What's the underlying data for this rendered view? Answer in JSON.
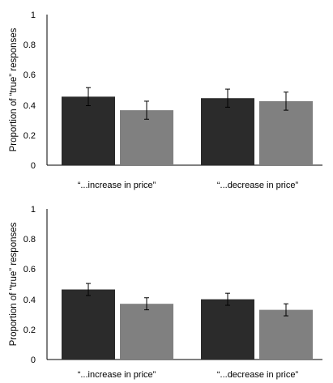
{
  "chart_data": [
    {
      "type": "bar",
      "categories": [
        "“...increase in price”",
        "“...decrease in price”"
      ],
      "series": [
        {
          "values": [
            0.455,
            0.445
          ],
          "errors": [
            0.06,
            0.06
          ]
        },
        {
          "values": [
            0.365,
            0.425
          ],
          "errors": [
            0.06,
            0.06
          ]
        }
      ],
      "ylabel": "Proportion of “true” responses",
      "ylim": [
        0,
        1
      ],
      "yticks": [
        "0",
        "0.2",
        "0.4",
        "0.6",
        "0.8",
        "1"
      ],
      "grid": false
    },
    {
      "type": "bar",
      "categories": [
        "“...increase in price”",
        "“...decrease in price”"
      ],
      "series": [
        {
          "values": [
            0.465,
            0.4
          ],
          "errors": [
            0.04,
            0.04
          ]
        },
        {
          "values": [
            0.37,
            0.33
          ],
          "errors": [
            0.04,
            0.04
          ]
        }
      ],
      "ylabel": "Proportion of “true” responses",
      "ylim": [
        0,
        1
      ],
      "yticks": [
        "0",
        "0.2",
        "0.4",
        "0.6",
        "0.8",
        "1"
      ],
      "grid": false
    }
  ],
  "colors": {
    "series_1": "#2b2b2b",
    "series_2": "#808080",
    "axis": "#000000"
  }
}
